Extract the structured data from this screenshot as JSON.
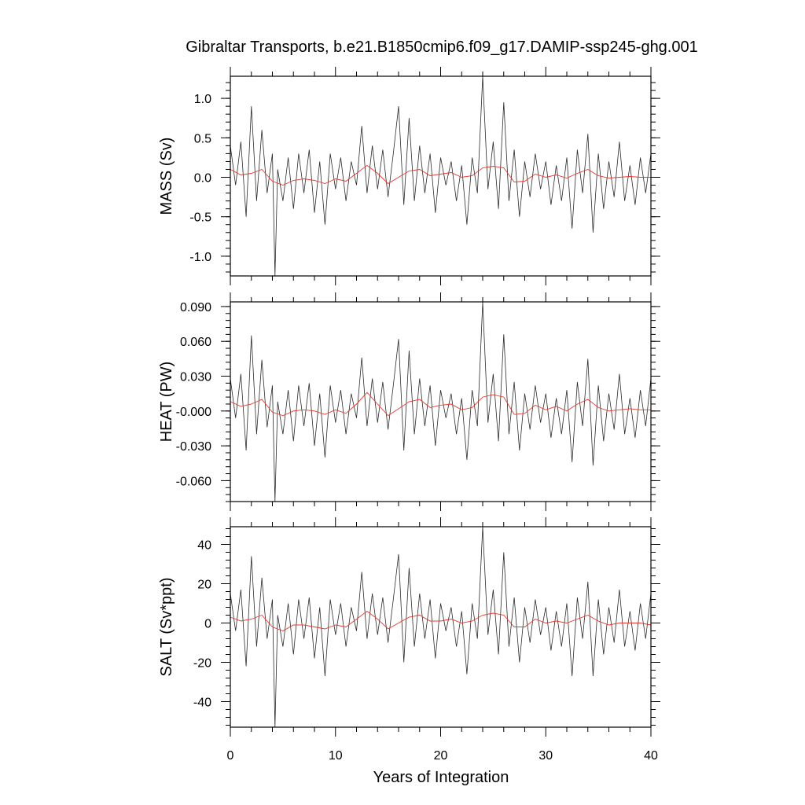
{
  "title": "Gibraltar Transports, b.e21.B1850cmip6.f09_g17.DAMIP-ssp245-ghg.001",
  "xlabel": "Years of Integration",
  "colors": {
    "raw": "#2b2b2b",
    "smooth": "#e8382e",
    "frame": "#000000"
  },
  "chart_data": [
    {
      "type": "line",
      "ylabel": "MASS (Sv)",
      "xlim": [
        0,
        40
      ],
      "ylim": [
        -1.25,
        1.28
      ],
      "xticks": [
        0,
        10,
        20,
        30,
        40
      ],
      "yticks": [
        -1.0,
        -0.5,
        0.0,
        0.5,
        1.0
      ],
      "ytick_labels": [
        "-1.0",
        "-0.5",
        "0.0",
        "0.5",
        "1.0"
      ],
      "yminor_step": 0.1,
      "series_raw": {
        "x": [
          0.0,
          0.5,
          1.0,
          1.5,
          2.0,
          2.5,
          3.0,
          3.5,
          4.0,
          4.25,
          4.5,
          5.0,
          5.5,
          6.0,
          6.5,
          7.0,
          7.5,
          8.0,
          8.5,
          9.0,
          9.5,
          10.0,
          10.5,
          11.0,
          11.5,
          12.0,
          12.5,
          13.0,
          13.5,
          14.0,
          14.5,
          15.0,
          15.5,
          16.0,
          16.5,
          17.0,
          17.5,
          18.0,
          18.5,
          19.0,
          19.5,
          20.0,
          20.5,
          21.0,
          21.5,
          22.0,
          22.5,
          23.0,
          23.5,
          24.0,
          24.5,
          25.0,
          25.5,
          26.0,
          26.5,
          27.0,
          27.5,
          28.0,
          28.5,
          29.0,
          29.5,
          30.0,
          30.5,
          31.0,
          31.5,
          32.0,
          32.5,
          33.0,
          33.5,
          34.0,
          34.5,
          35.0,
          35.5,
          36.0,
          36.5,
          37.0,
          37.5,
          38.0,
          38.5,
          39.0,
          39.5,
          40.0
        ],
        "y": [
          0.4,
          -0.1,
          0.45,
          -0.5,
          0.9,
          -0.3,
          0.6,
          -0.2,
          0.3,
          -1.25,
          0.1,
          -0.3,
          0.25,
          -0.4,
          0.3,
          -0.2,
          0.35,
          -0.45,
          0.2,
          -0.6,
          0.3,
          -0.15,
          0.25,
          -0.3,
          0.2,
          -0.1,
          0.65,
          -0.2,
          0.4,
          -0.15,
          0.35,
          -0.25,
          0.3,
          0.9,
          -0.35,
          0.75,
          -0.3,
          0.4,
          -0.2,
          0.3,
          -0.45,
          0.25,
          -0.1,
          0.2,
          -0.3,
          0.15,
          -0.6,
          0.25,
          -0.2,
          1.28,
          -0.15,
          0.45,
          -0.4,
          0.95,
          -0.3,
          0.35,
          -0.5,
          0.2,
          -0.25,
          0.3,
          -0.15,
          0.2,
          -0.35,
          0.15,
          -0.3,
          0.25,
          -0.65,
          0.35,
          -0.2,
          0.55,
          -0.7,
          0.3,
          -0.4,
          0.2,
          -0.25,
          0.45,
          -0.3,
          0.15,
          -0.35,
          0.25,
          -0.2,
          0.3
        ]
      },
      "series_smooth": {
        "x": [
          0,
          1,
          2,
          3,
          4,
          5,
          6,
          7,
          8,
          9,
          10,
          11,
          12,
          13,
          14,
          15,
          16,
          17,
          18,
          19,
          20,
          21,
          22,
          23,
          24,
          25,
          26,
          27,
          28,
          29,
          30,
          31,
          32,
          33,
          34,
          35,
          36,
          37,
          38,
          39,
          40
        ],
        "y": [
          0.1,
          0.03,
          0.05,
          0.1,
          -0.05,
          -0.1,
          -0.04,
          -0.02,
          -0.04,
          -0.08,
          -0.02,
          -0.05,
          0.05,
          0.15,
          0.05,
          -0.08,
          0.0,
          0.08,
          0.1,
          0.02,
          0.04,
          0.06,
          0.0,
          0.02,
          0.12,
          0.14,
          0.12,
          -0.06,
          -0.05,
          0.04,
          0.0,
          0.03,
          -0.01,
          0.05,
          0.1,
          0.02,
          -0.01,
          0.0,
          0.01,
          0.0,
          0.0
        ]
      }
    },
    {
      "type": "line",
      "ylabel": "HEAT (PW)",
      "xlim": [
        0,
        40
      ],
      "ylim": [
        -0.078,
        0.094
      ],
      "xticks": [
        0,
        10,
        20,
        30,
        40
      ],
      "yticks": [
        -0.06,
        -0.03,
        0.0,
        0.03,
        0.06,
        0.09
      ],
      "ytick_labels": [
        "-0.060",
        "-0.030",
        "-0.000",
        "0.030",
        "0.060",
        "0.090"
      ],
      "yminor_step": 0.006,
      "series_raw": {
        "x": [
          0.0,
          0.5,
          1.0,
          1.5,
          2.0,
          2.5,
          3.0,
          3.5,
          4.0,
          4.25,
          4.5,
          5.0,
          5.5,
          6.0,
          6.5,
          7.0,
          7.5,
          8.0,
          8.5,
          9.0,
          9.5,
          10.0,
          10.5,
          11.0,
          11.5,
          12.0,
          12.5,
          13.0,
          13.5,
          14.0,
          14.5,
          15.0,
          15.5,
          16.0,
          16.5,
          17.0,
          17.5,
          18.0,
          18.5,
          19.0,
          19.5,
          20.0,
          20.5,
          21.0,
          21.5,
          22.0,
          22.5,
          23.0,
          23.5,
          24.0,
          24.5,
          25.0,
          25.5,
          26.0,
          26.5,
          27.0,
          27.5,
          28.0,
          28.5,
          29.0,
          29.5,
          30.0,
          30.5,
          31.0,
          31.5,
          32.0,
          32.5,
          33.0,
          33.5,
          34.0,
          34.5,
          35.0,
          35.5,
          36.0,
          36.5,
          37.0,
          37.5,
          38.0,
          38.5,
          39.0,
          39.5,
          40.0
        ],
        "y": [
          0.028,
          -0.006,
          0.032,
          -0.034,
          0.065,
          -0.02,
          0.044,
          -0.014,
          0.022,
          -0.078,
          0.008,
          -0.02,
          0.018,
          -0.026,
          0.022,
          -0.013,
          0.024,
          -0.03,
          0.015,
          -0.04,
          0.022,
          -0.01,
          0.018,
          -0.02,
          0.015,
          -0.006,
          0.046,
          -0.013,
          0.028,
          -0.01,
          0.025,
          -0.016,
          0.022,
          0.062,
          -0.034,
          0.052,
          -0.02,
          0.028,
          -0.013,
          0.022,
          -0.03,
          0.018,
          -0.006,
          0.015,
          -0.02,
          0.011,
          -0.042,
          0.018,
          -0.013,
          0.094,
          -0.01,
          0.032,
          -0.026,
          0.066,
          -0.02,
          0.025,
          -0.034,
          0.015,
          -0.016,
          0.022,
          -0.01,
          0.015,
          -0.023,
          0.011,
          -0.02,
          0.018,
          -0.044,
          0.025,
          -0.013,
          0.045,
          -0.047,
          0.022,
          -0.026,
          0.015,
          -0.016,
          0.032,
          -0.02,
          0.011,
          -0.023,
          0.018,
          -0.013,
          0.028
        ]
      },
      "series_smooth": {
        "x": [
          0,
          1,
          2,
          3,
          4,
          5,
          6,
          7,
          8,
          9,
          10,
          11,
          12,
          13,
          14,
          15,
          16,
          17,
          18,
          19,
          20,
          21,
          22,
          23,
          24,
          25,
          26,
          27,
          28,
          29,
          30,
          31,
          32,
          33,
          34,
          35,
          36,
          37,
          38,
          39,
          40
        ],
        "y": [
          0.008,
          0.004,
          0.006,
          0.01,
          -0.001,
          -0.004,
          0.0,
          0.001,
          0.0,
          -0.003,
          0.001,
          -0.002,
          0.006,
          0.016,
          0.006,
          -0.004,
          0.002,
          0.008,
          0.01,
          0.003,
          0.005,
          0.006,
          0.001,
          0.003,
          0.012,
          0.014,
          0.012,
          -0.003,
          -0.002,
          0.005,
          0.001,
          0.004,
          0.0,
          0.006,
          0.01,
          0.003,
          0.0,
          0.001,
          0.002,
          0.001,
          0.001
        ]
      }
    },
    {
      "type": "line",
      "ylabel": "SALT (Sv*ppt)",
      "xlim": [
        0,
        40
      ],
      "ylim": [
        -53,
        49
      ],
      "xticks": [
        0,
        10,
        20,
        30,
        40
      ],
      "yticks": [
        -40,
        -20,
        0,
        20,
        40
      ],
      "ytick_labels": [
        "-40",
        "-20",
        "0",
        "20",
        "40"
      ],
      "yminor_step": 4,
      "series_raw": {
        "x": [
          0.0,
          0.5,
          1.0,
          1.5,
          2.0,
          2.5,
          3.0,
          3.5,
          4.0,
          4.25,
          4.5,
          5.0,
          5.5,
          6.0,
          6.5,
          7.0,
          7.5,
          8.0,
          8.5,
          9.0,
          9.5,
          10.0,
          10.5,
          11.0,
          11.5,
          12.0,
          12.5,
          13.0,
          13.5,
          14.0,
          14.5,
          15.0,
          15.5,
          16.0,
          16.5,
          17.0,
          17.5,
          18.0,
          18.5,
          19.0,
          19.5,
          20.0,
          20.5,
          21.0,
          21.5,
          22.0,
          22.5,
          23.0,
          23.5,
          24.0,
          24.5,
          25.0,
          25.5,
          26.0,
          26.5,
          27.0,
          27.5,
          28.0,
          28.5,
          29.0,
          29.5,
          30.0,
          30.5,
          31.0,
          31.5,
          32.0,
          32.5,
          33.0,
          33.5,
          34.0,
          34.5,
          35.0,
          35.5,
          36.0,
          36.5,
          37.0,
          37.5,
          38.0,
          38.5,
          39.0,
          39.5,
          40.0
        ],
        "y": [
          15,
          -4,
          17,
          -22,
          34,
          -12,
          23,
          -8,
          12,
          -53,
          4,
          -12,
          10,
          -16,
          12,
          -8,
          13,
          -18,
          8,
          -27,
          12,
          -6,
          10,
          -12,
          8,
          -4,
          26,
          -8,
          15,
          -6,
          13,
          -10,
          12,
          35,
          -20,
          28,
          -12,
          15,
          -8,
          12,
          -18,
          10,
          -4,
          8,
          -12,
          6,
          -26,
          10,
          -8,
          49,
          -6,
          17,
          -16,
          36,
          -12,
          13,
          -20,
          8,
          -10,
          12,
          -6,
          8,
          -14,
          6,
          -12,
          10,
          -27,
          13,
          -8,
          21,
          -27,
          12,
          -16,
          8,
          -10,
          17,
          -12,
          6,
          -14,
          10,
          -8,
          15
        ]
      },
      "series_smooth": {
        "x": [
          0,
          1,
          2,
          3,
          4,
          5,
          6,
          7,
          8,
          9,
          10,
          11,
          12,
          13,
          14,
          15,
          16,
          17,
          18,
          19,
          20,
          21,
          22,
          23,
          24,
          25,
          26,
          27,
          28,
          29,
          30,
          31,
          32,
          33,
          34,
          35,
          36,
          37,
          38,
          39,
          40
        ],
        "y": [
          3,
          1,
          2,
          4,
          -2,
          -4,
          -1,
          -1,
          -2,
          -3,
          -1,
          -2,
          2,
          6,
          2,
          -3,
          0,
          3,
          4,
          1,
          1,
          2,
          0,
          1,
          4,
          5,
          4,
          -2,
          -2,
          2,
          0,
          1,
          0,
          2,
          4,
          1,
          -1,
          0,
          0,
          0,
          -1
        ]
      }
    }
  ]
}
